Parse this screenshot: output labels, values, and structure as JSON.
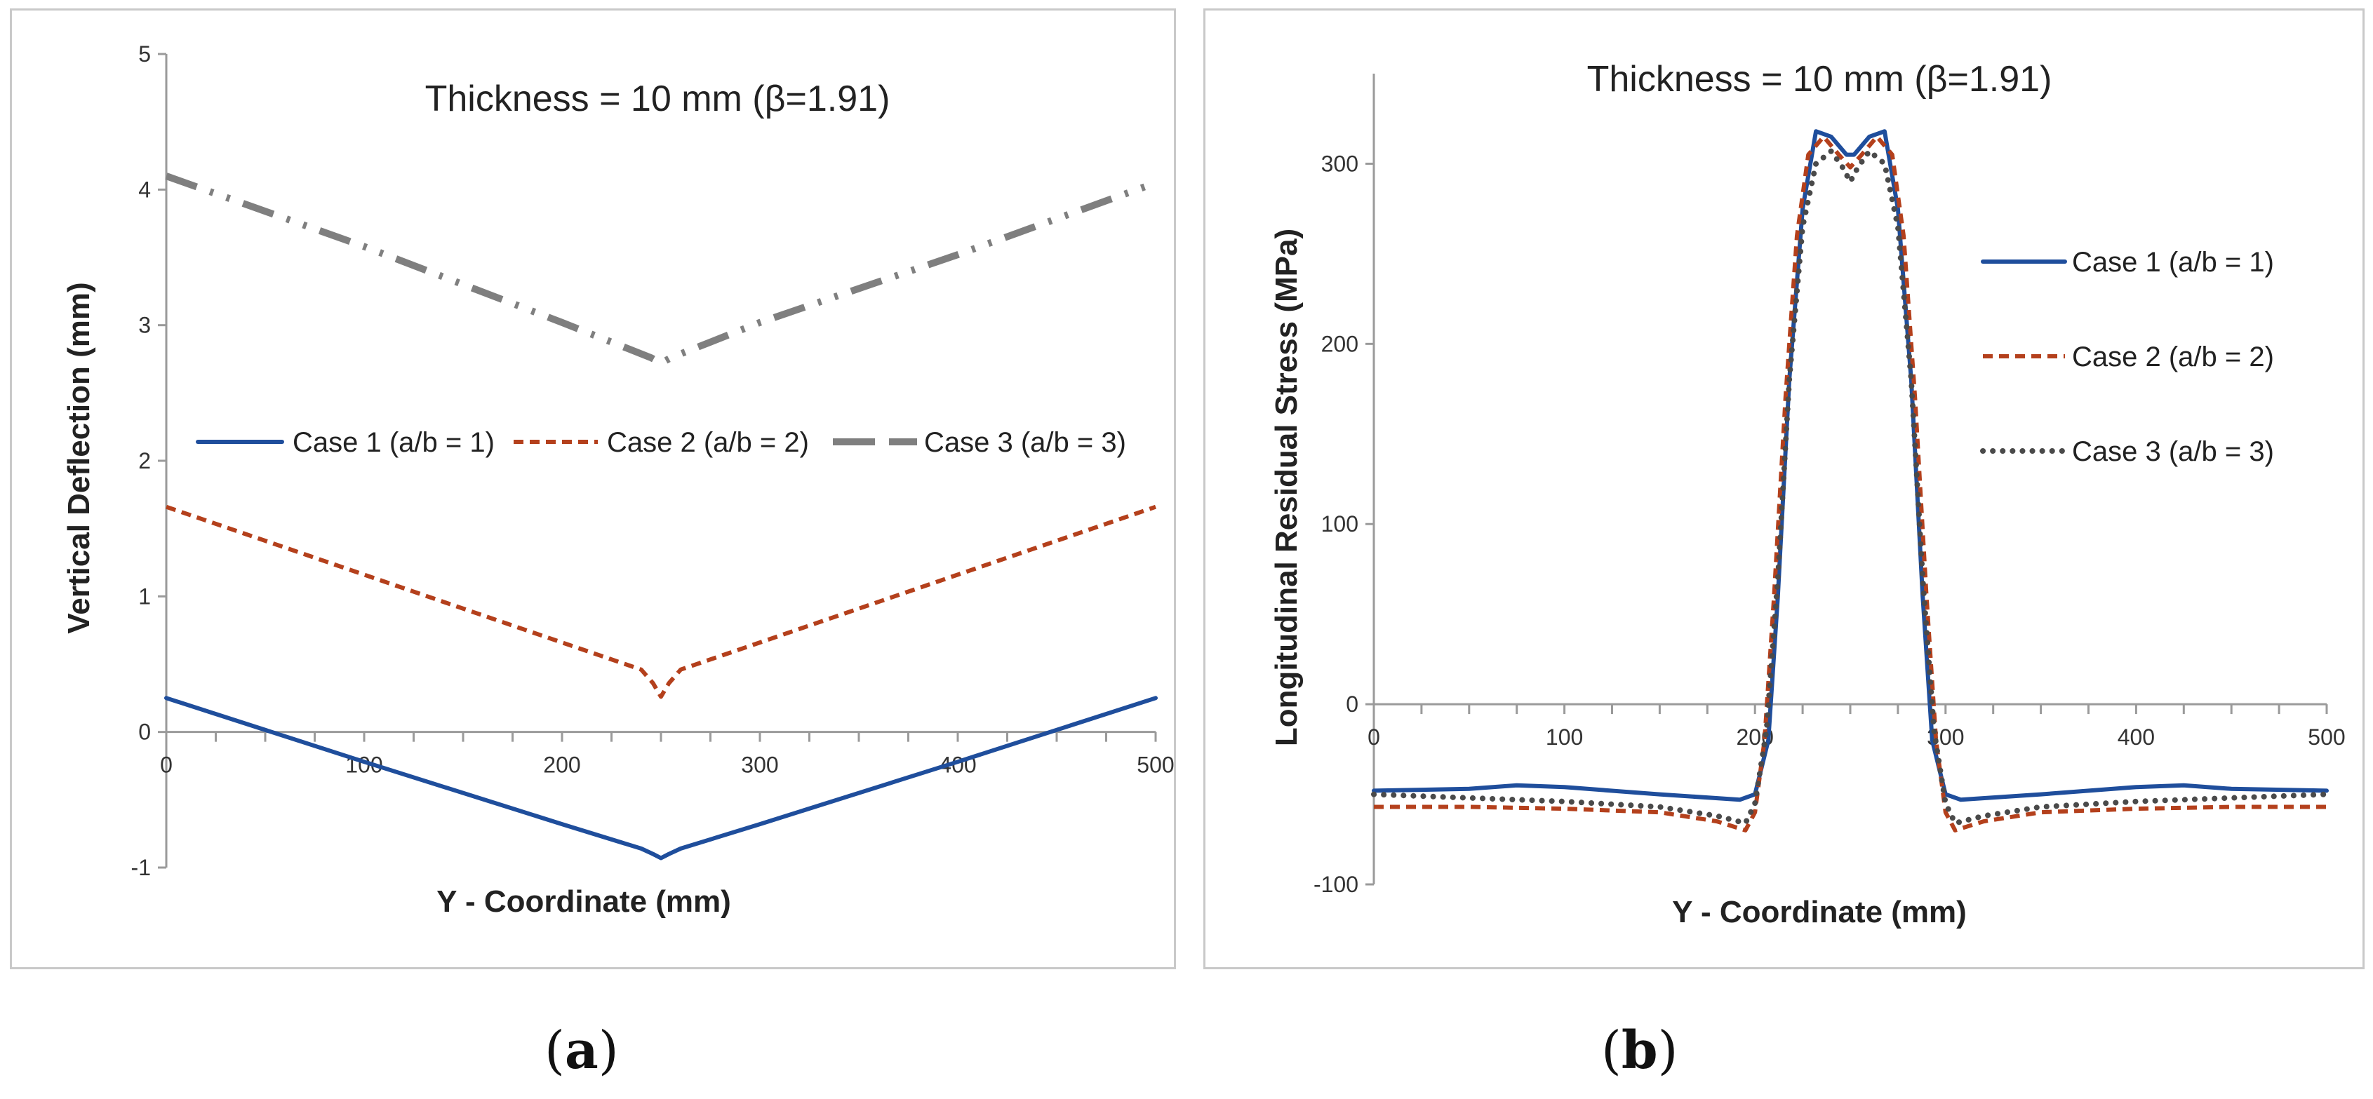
{
  "figure": {
    "label_a_open": "(",
    "label_a": "a",
    "label_a_close": ")",
    "label_b_open": "(",
    "label_b": "b",
    "label_b_close": ")"
  },
  "colors": {
    "case1": "#1f4e9c",
    "case2": "#b4401c",
    "case3_a": "#7f7f7f",
    "case3_b": "#4a4a4a"
  },
  "chart_data": [
    {
      "type": "line",
      "title": "Thickness = 10 mm (β=1.91)",
      "xlabel": "Y - Coordinate (mm)",
      "ylabel": "Vertical Deflection (mm)",
      "xlim": [
        0,
        500
      ],
      "ylim": [
        -1,
        5
      ],
      "xticks": [
        "0",
        "100",
        "200",
        "300",
        "400",
        "500"
      ],
      "yticks": [
        "-1",
        "0",
        "1",
        "2",
        "3",
        "4",
        "5"
      ],
      "legend_position": "middle",
      "series": [
        {
          "name": "Case 1 (a/b = 1)",
          "style": "solid",
          "color": "#1f4e9c",
          "x": [
            0,
            100,
            200,
            240,
            246,
            250,
            254,
            260,
            300,
            400,
            500
          ],
          "y": [
            0.25,
            -0.22,
            -0.68,
            -0.86,
            -0.9,
            -0.93,
            -0.9,
            -0.86,
            -0.68,
            -0.22,
            0.25
          ]
        },
        {
          "name": "Case 2 (a/b = 2)",
          "style": "dashed",
          "color": "#b4401c",
          "x": [
            0,
            100,
            200,
            240,
            246,
            250,
            254,
            260,
            300,
            400,
            500
          ],
          "y": [
            1.66,
            1.16,
            0.66,
            0.46,
            0.36,
            0.26,
            0.36,
            0.46,
            0.66,
            1.16,
            1.66
          ]
        },
        {
          "name": "Case 3 (a/b = 3)",
          "style": "dash-dot",
          "color": "#7f7f7f",
          "x": [
            0,
            100,
            200,
            245,
            250,
            255,
            300,
            400,
            500
          ],
          "y": [
            4.1,
            3.58,
            3.02,
            2.76,
            2.72,
            2.76,
            3.02,
            3.52,
            4.05
          ]
        }
      ]
    },
    {
      "type": "line",
      "title": "Thickness = 10 mm (β=1.91)",
      "xlabel": "Y - Coordinate (mm)",
      "ylabel": "Longitudinal Residual Stress (MPa)",
      "xlim": [
        0,
        500
      ],
      "ylim": [
        -100,
        350
      ],
      "xticks": [
        "0",
        "100",
        "200",
        "300",
        "400",
        "500"
      ],
      "yticks": [
        "-100",
        "0",
        "100",
        "200",
        "300"
      ],
      "legend_position": "right",
      "series": [
        {
          "name": "Case 1 (a/b = 1)",
          "style": "solid",
          "color": "#1f4e9c",
          "x": [
            0,
            50,
            75,
            100,
            150,
            192,
            200,
            207,
            212,
            218,
            225,
            232,
            240,
            248,
            252,
            260,
            268,
            275,
            282,
            288,
            293,
            300,
            308,
            350,
            400,
            425,
            450,
            500
          ],
          "y": [
            -48,
            -47,
            -45,
            -46,
            -50,
            -53,
            -50,
            -20,
            60,
            180,
            275,
            318,
            315,
            305,
            305,
            315,
            318,
            275,
            180,
            60,
            -20,
            -50,
            -53,
            -50,
            -46,
            -45,
            -47,
            -48
          ]
        },
        {
          "name": "Case 2 (a/b = 2)",
          "style": "dashed",
          "color": "#b4401c",
          "x": [
            0,
            50,
            100,
            150,
            180,
            195,
            200,
            205,
            210,
            216,
            222,
            228,
            236,
            244,
            250,
            256,
            264,
            272,
            278,
            284,
            290,
            295,
            300,
            305,
            320,
            350,
            400,
            450,
            500
          ],
          "y": [
            -57,
            -57,
            -58,
            -60,
            -65,
            -70,
            -60,
            -20,
            60,
            170,
            260,
            305,
            315,
            305,
            298,
            305,
            315,
            305,
            260,
            170,
            60,
            -20,
            -60,
            -70,
            -65,
            -60,
            -58,
            -57,
            -57
          ]
        },
        {
          "name": "Case 3 (a/b = 3)",
          "style": "dotted",
          "color": "#4a4a4a",
          "x": [
            0,
            50,
            100,
            150,
            180,
            195,
            200,
            206,
            212,
            218,
            225,
            232,
            240,
            246,
            250,
            254,
            260,
            268,
            275,
            282,
            288,
            294,
            300,
            305,
            320,
            350,
            400,
            450,
            500
          ],
          "y": [
            -50,
            -52,
            -54,
            -57,
            -62,
            -66,
            -55,
            -15,
            70,
            180,
            265,
            300,
            307,
            298,
            290,
            298,
            307,
            300,
            265,
            180,
            70,
            -15,
            -55,
            -66,
            -62,
            -57,
            -54,
            -52,
            -50
          ]
        }
      ]
    }
  ]
}
